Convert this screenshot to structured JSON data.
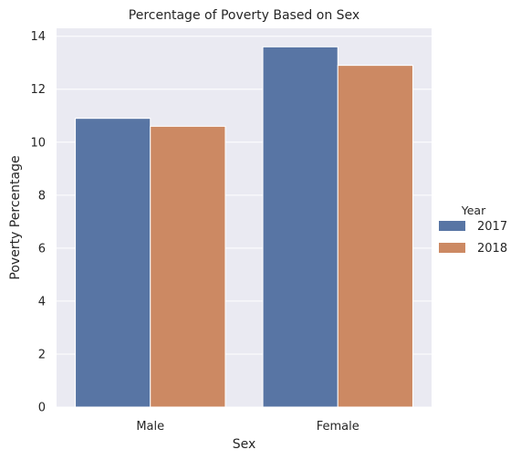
{
  "chart_data": {
    "type": "bar",
    "title": "Percentage of Poverty Based on Sex",
    "xlabel": "Sex",
    "ylabel": "Poverty Percentage",
    "categories": [
      "Male",
      "Female"
    ],
    "series": [
      {
        "name": "2017",
        "values": [
          10.9,
          13.6
        ],
        "color": "#5875a4"
      },
      {
        "name": "2018",
        "values": [
          10.6,
          12.9
        ],
        "color": "#cc8963"
      }
    ],
    "ylim": [
      0,
      14.3
    ],
    "yticks": [
      "0",
      "2",
      "4",
      "6",
      "8",
      "10",
      "12",
      "14"
    ],
    "grid": true,
    "legend": {
      "title": "Year",
      "placement": "right"
    },
    "background": "#eaeaf2"
  }
}
